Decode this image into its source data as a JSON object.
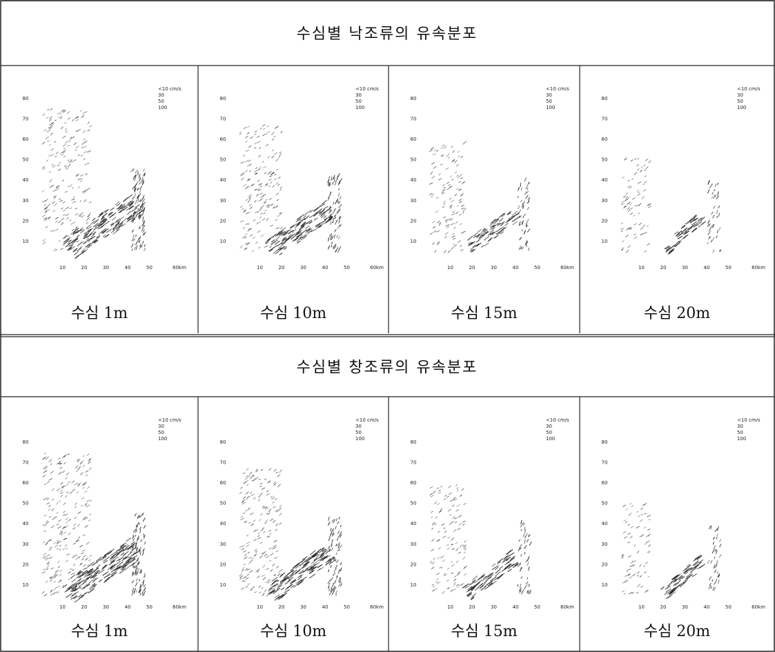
{
  "sections": [
    {
      "title": "수심별 낙조류의 유속분포",
      "panels": [
        {
          "caption": "수심 1m"
        },
        {
          "caption": "수심 10m"
        },
        {
          "caption": "수심 15m"
        },
        {
          "caption": "수심 20m"
        }
      ]
    },
    {
      "title": "수심별 창조류의 유속분포",
      "panels": [
        {
          "caption": "수심 1m"
        },
        {
          "caption": "수심 10m"
        },
        {
          "caption": "수심 15m"
        },
        {
          "caption": "수심 20m"
        }
      ]
    }
  ],
  "axes": {
    "x_ticks": [
      "10",
      "20",
      "30",
      "40",
      "50",
      "60km"
    ],
    "y_ticks": [
      "80",
      "70",
      "60",
      "50",
      "40",
      "30",
      "20",
      "10"
    ]
  },
  "legend": [
    "<10 cm/s",
    "30",
    "50",
    "100"
  ]
}
